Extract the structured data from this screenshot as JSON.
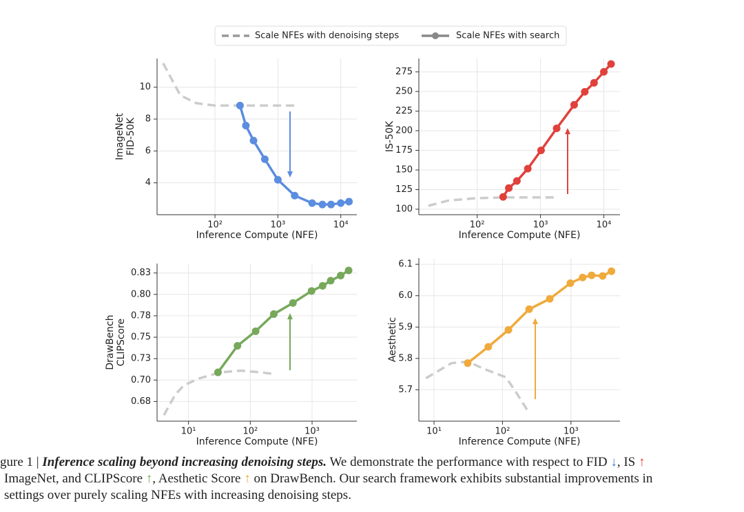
{
  "legend": [
    {
      "name": "Scale NFEs with denoising steps",
      "color": "#999999",
      "dash": true
    },
    {
      "name": "Scale NFEs with search",
      "color": "#888888",
      "dash": false
    }
  ],
  "chart_data": [
    {
      "type": "line",
      "ylabel": [
        "ImageNet",
        "FID-50K"
      ],
      "xlabel": "Inference Compute (NFE)",
      "xscale": "log",
      "grid": true,
      "xlim": [
        12,
        18000
      ],
      "ylim": [
        2.0,
        11.8
      ],
      "xticks": [
        {
          "value": 100,
          "label": "10²"
        },
        {
          "value": 1000,
          "label": "10³"
        },
        {
          "value": 10000,
          "label": "10⁴"
        }
      ],
      "yticks": [
        4,
        6,
        8,
        10
      ],
      "series": [
        {
          "color": "#cccccc",
          "dash": true,
          "markers": false,
          "x": [
            15,
            28,
            50,
            100,
            250,
            500,
            1000,
            1860
          ],
          "values": [
            11.5,
            9.5,
            9.0,
            8.85,
            8.85,
            8.85,
            8.85,
            8.85
          ]
        },
        {
          "color": "#5b8de0",
          "dash": false,
          "markers": true,
          "x": [
            250,
            310,
            410,
            620,
            1000,
            1850,
            3500,
            5100,
            7000,
            10000,
            13500
          ],
          "values": [
            8.85,
            7.59,
            6.65,
            5.48,
            4.19,
            3.2,
            2.73,
            2.64,
            2.64,
            2.73,
            2.82
          ]
        }
      ]
    },
    {
      "type": "line",
      "ylabel": [
        "IS-50K"
      ],
      "xlabel": "Inference Compute (NFE)",
      "xscale": "log",
      "grid": true,
      "xlim": [
        12,
        18000
      ],
      "ylim": [
        93,
        292
      ],
      "xticks": [
        {
          "value": 100,
          "label": "10²"
        },
        {
          "value": 1000,
          "label": "10³"
        },
        {
          "value": 10000,
          "label": "10⁴"
        }
      ],
      "yticks": [
        100,
        125,
        150,
        175,
        200,
        225,
        250,
        275
      ],
      "series": [
        {
          "color": "#cccccc",
          "dash": true,
          "markers": false,
          "x": [
            17,
            35,
            95,
            250,
            500,
            1000,
            1780
          ],
          "values": [
            104.4,
            111,
            114,
            115,
            115,
            115,
            115
          ]
        },
        {
          "color": "#e0413b",
          "dash": false,
          "markers": true,
          "x": [
            257,
            316,
            424,
            630,
            1020,
            1800,
            3400,
            5000,
            7000,
            10000,
            13000
          ],
          "values": [
            115.7,
            127,
            136,
            151.6,
            175,
            203,
            233,
            249.6,
            261,
            275,
            285
          ]
        }
      ]
    },
    {
      "type": "line",
      "ylabel": [
        "DrawBench",
        "CLIPScore"
      ],
      "xlabel": "Inference Compute (NFE)",
      "xscale": "log",
      "grid": true,
      "xlim": [
        3.1,
        5300
      ],
      "ylim": [
        0.652,
        0.836
      ],
      "xticks": [
        {
          "value": 10,
          "label": "10¹"
        },
        {
          "value": 100,
          "label": "10²"
        },
        {
          "value": 1000,
          "label": "10³"
        }
      ],
      "yticks": [
        {
          "value": 0.675,
          "label": "0.68"
        },
        {
          "value": 0.7,
          "label": "0.70"
        },
        {
          "value": 0.725,
          "label": "0.73"
        },
        {
          "value": 0.75,
          "label": "0.75"
        },
        {
          "value": 0.775,
          "label": "0.78"
        },
        {
          "value": 0.8,
          "label": "0.80"
        },
        {
          "value": 0.825,
          "label": "0.83"
        }
      ],
      "series": [
        {
          "color": "#cccccc",
          "dash": true,
          "markers": false,
          "x": [
            4,
            6.1,
            8.5,
            15,
            33,
            70,
            150,
            240
          ],
          "values": [
            0.659,
            0.683,
            0.694,
            0.702,
            0.709,
            0.711,
            0.709,
            0.707
          ]
        },
        {
          "color": "#77a85b",
          "dash": false,
          "markers": true,
          "x": [
            30,
            62,
            122,
            240,
            490,
            980,
            1480,
            2000,
            2900,
            3900
          ],
          "values": [
            0.709,
            0.74,
            0.757,
            0.777,
            0.79,
            0.804,
            0.81,
            0.816,
            0.822,
            0.828
          ]
        }
      ]
    },
    {
      "type": "line",
      "ylabel": [
        "Aesthetic"
      ],
      "xlabel": "Inference Compute (NFE)",
      "xscale": "log",
      "grid": true,
      "xlim": [
        6,
        5200
      ],
      "ylim": [
        5.6,
        6.12
      ],
      "xticks": [
        {
          "value": 10,
          "label": "10¹"
        },
        {
          "value": 100,
          "label": "10²"
        },
        {
          "value": 1000,
          "label": "10³"
        }
      ],
      "yticks": [
        5.7,
        5.8,
        5.9,
        {
          "value": 6,
          "label": "6.0"
        },
        6.1
      ],
      "series": [
        {
          "color": "#cccccc",
          "dash": true,
          "markers": false,
          "x": [
            7.6,
            18,
            31,
            56,
            112,
            160,
            245
          ],
          "values": [
            5.737,
            5.785,
            5.79,
            5.765,
            5.74,
            5.69,
            5.626
          ]
        },
        {
          "color": "#f0aa3c",
          "dash": false,
          "markers": true,
          "x": [
            31,
            62,
            122,
            245,
            490,
            980,
            1480,
            2000,
            2900,
            3900
          ],
          "values": [
            5.785,
            5.837,
            5.891,
            5.957,
            5.99,
            6.04,
            6.058,
            6.065,
            6.063,
            6.078
          ]
        }
      ]
    }
  ],
  "caption": {
    "lines": [
      [
        "gure 1 | ",
        "Inference scaling beyond increasing denoising steps.",
        " We demonstrate the performance with respect to FID ",
        "↓",
        ", IS ",
        "↑"
      ],
      [
        "ImageNet, and CLIPScore ",
        "↑",
        ", Aesthetic Score ",
        "↑",
        " on DrawBench. Our search framework exhibits substantial improvements in"
      ],
      [
        "settings over purely scaling NFEs with increasing denoising steps."
      ]
    ]
  }
}
